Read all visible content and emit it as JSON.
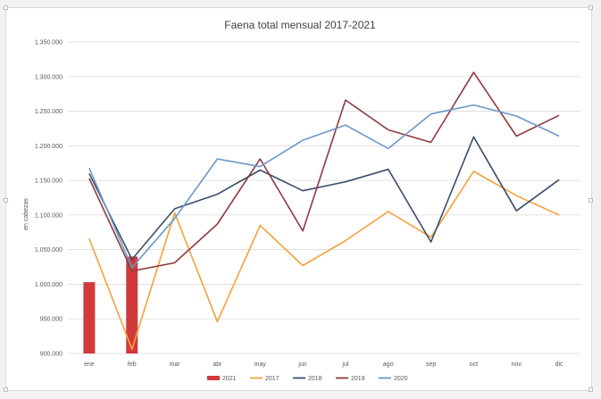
{
  "chart_data": {
    "type": "line",
    "title": "Faena total mensual 2017-2021",
    "xlabel": "",
    "ylabel": "en cabezas",
    "categories": [
      "ene",
      "feb",
      "mar",
      "abr",
      "may",
      "jun",
      "jul",
      "ago",
      "sep",
      "oct",
      "nov",
      "dic"
    ],
    "y_ticks": [
      "900.000",
      "950.000",
      "1.000.000",
      "1.050.000",
      "1.100.000",
      "1.150.000",
      "1.200.000",
      "1.250.000",
      "1.300.000",
      "1.350.000"
    ],
    "y_tick_values": [
      900000,
      950000,
      1000000,
      1050000,
      1100000,
      1150000,
      1200000,
      1250000,
      1300000,
      1350000
    ],
    "ylim": [
      900000,
      1350000
    ],
    "grid": true,
    "legend_position": "bottom",
    "bar_series": {
      "name": "2021",
      "color": "#d13a3a",
      "values": [
        1003000,
        1040000
      ]
    },
    "series": [
      {
        "name": "2017",
        "color": "#f5a13c",
        "values": [
          1066000,
          906000,
          1103000,
          946000,
          1085000,
          1027000,
          1063000,
          1105000,
          1068000,
          1163000,
          1128000,
          1100000
        ]
      },
      {
        "name": "2018",
        "color": "#3a4e6b",
        "values": [
          1160000,
          1036000,
          1109000,
          1130000,
          1165000,
          1135000,
          1148000,
          1166000,
          1061000,
          1213000,
          1106000,
          1151000
        ]
      },
      {
        "name": "2019",
        "color": "#8e3a3e",
        "values": [
          1153000,
          1019000,
          1031000,
          1087000,
          1181000,
          1077000,
          1266000,
          1223000,
          1205000,
          1306000,
          1214000,
          1244000
        ]
      },
      {
        "name": "2020",
        "color": "#6e97c8",
        "values": [
          1168000,
          1024000,
          1095000,
          1181000,
          1170000,
          1208000,
          1230000,
          1196000,
          1246000,
          1259000,
          1243000,
          1214000
        ]
      }
    ]
  }
}
